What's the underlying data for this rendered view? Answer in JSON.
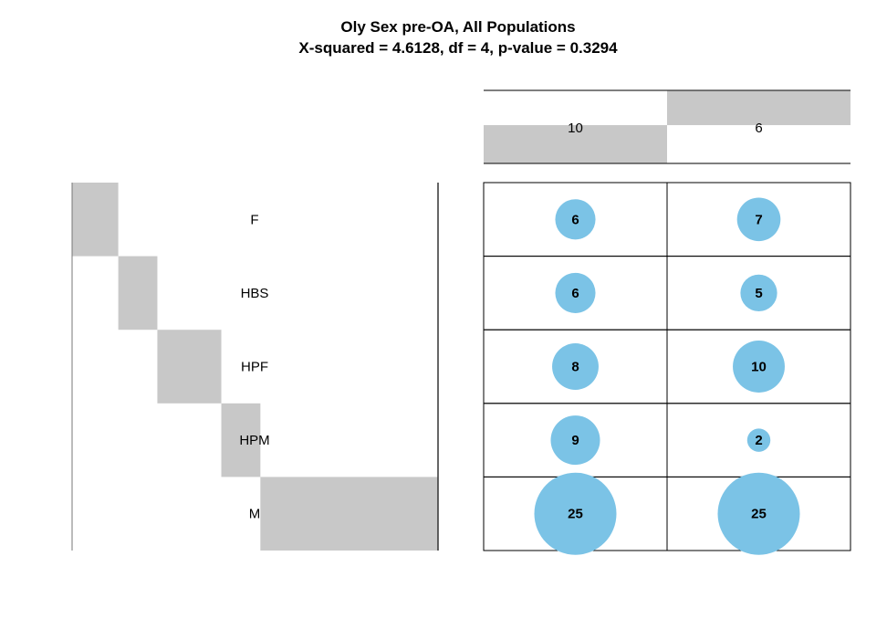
{
  "chart_data": {
    "type": "balloon",
    "title": "Oly Sex pre-OA, All Populations",
    "subtitle": "X-squared = 4.6128, df = 4, p-value = 0.3294",
    "rows": [
      "F",
      "HBS",
      "HPF",
      "HPM",
      "M"
    ],
    "columns": [
      "10",
      "6"
    ],
    "counts": [
      [
        6,
        7
      ],
      [
        6,
        5
      ],
      [
        8,
        10
      ],
      [
        9,
        2
      ],
      [
        25,
        25
      ]
    ],
    "row_totals": [
      13,
      11,
      18,
      11,
      50
    ],
    "column_totals": [
      54,
      49
    ]
  },
  "colors": {
    "bubble": "#7BC3E6",
    "marginal_bar": "#C8C8C8",
    "grid": "#000000"
  }
}
